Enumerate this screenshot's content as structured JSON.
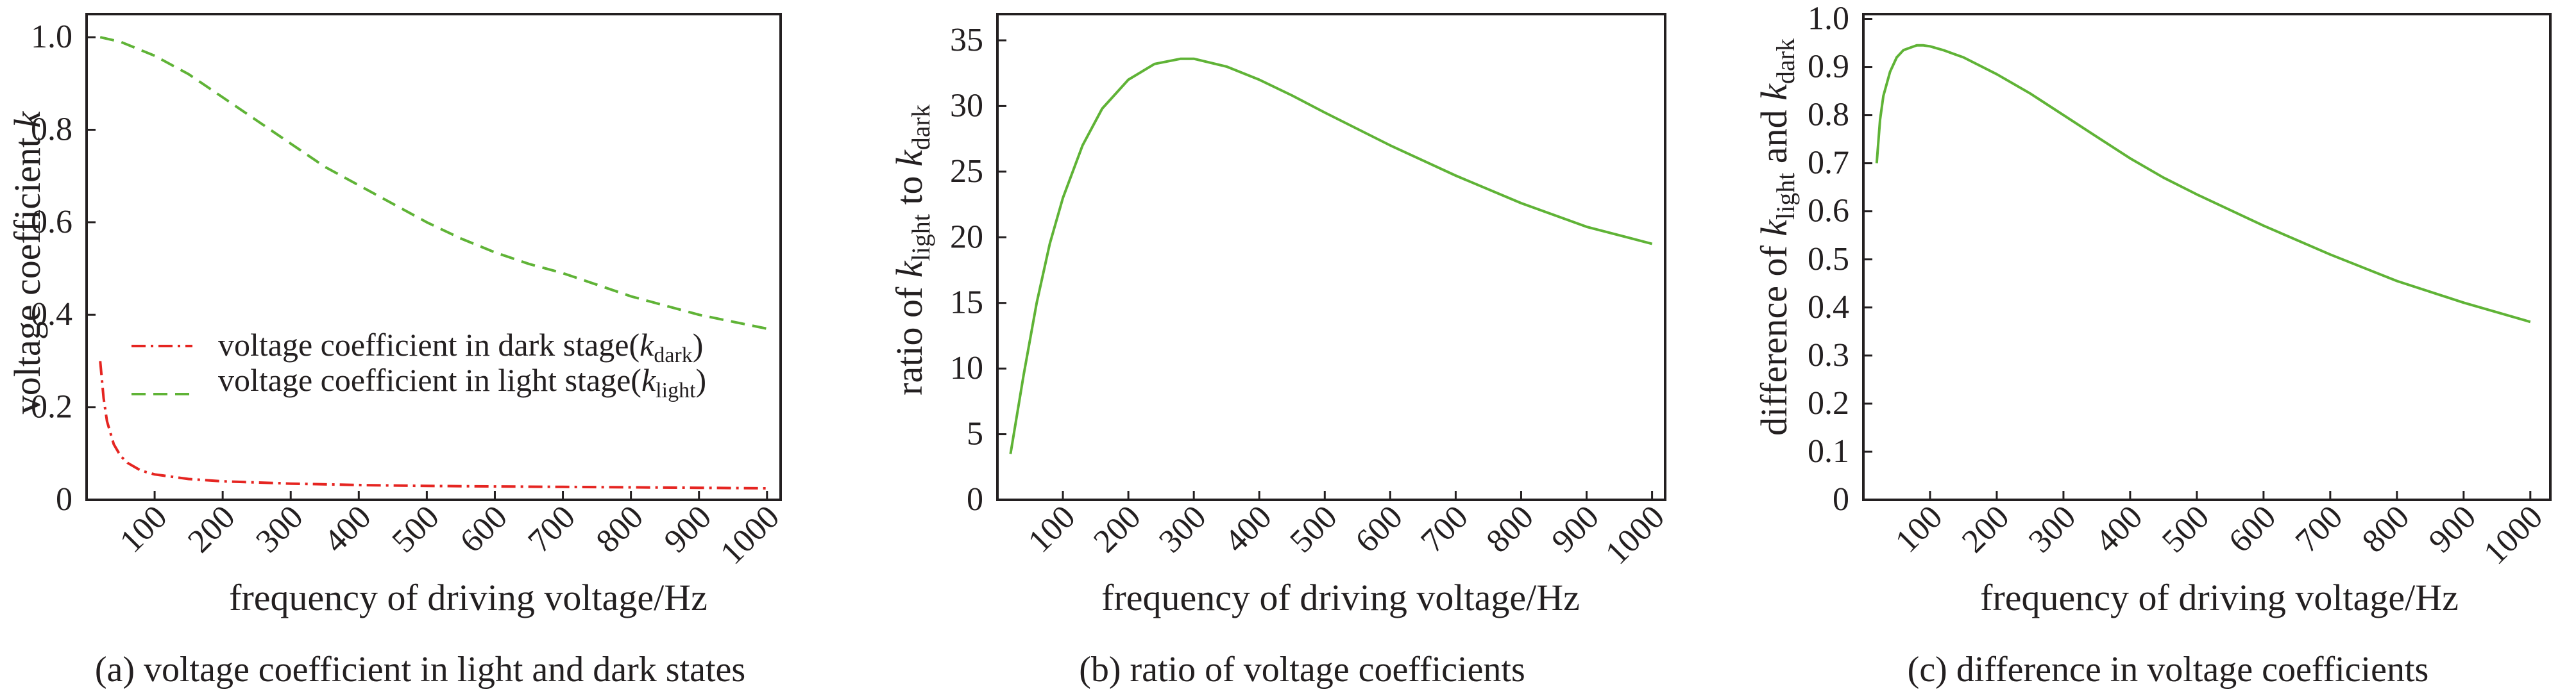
{
  "chart_data": [
    {
      "type": "line",
      "panel": "a",
      "caption": "(a) voltage coefficient in light and dark states",
      "xlabel": "frequency of driving voltage/Hz",
      "ylabel": "voltage coefficient k",
      "ylabel_main": "voltage coefficient ",
      "ylabel_var": "k",
      "xlim": [
        0,
        1020
      ],
      "ylim": [
        0,
        1.05
      ],
      "x_ticks": [
        100,
        200,
        300,
        400,
        500,
        600,
        700,
        800,
        900,
        1000
      ],
      "x_tick_labels": [
        "100",
        "200",
        "300",
        "400",
        "500",
        "600",
        "700",
        "800",
        "900",
        "1000"
      ],
      "y_ticks": [
        0,
        0.2,
        0.4,
        0.6,
        0.8,
        1.0
      ],
      "y_tick_labels": [
        "0",
        "0.2",
        "0.4",
        "0.6",
        "0.8",
        "1.0"
      ],
      "grid": false,
      "legend_position": "center-left",
      "series": [
        {
          "name": "voltage coefficient in dark stage(kdark)",
          "legend_text": "voltage coefficient in dark stage(",
          "legend_var": "k",
          "legend_sub": "dark",
          "color": "#e52521",
          "dash": "dashdot",
          "x": [
            20,
            25,
            30,
            40,
            50,
            60,
            80,
            100,
            150,
            200,
            300,
            400,
            500,
            600,
            700,
            800,
            900,
            1000
          ],
          "y": [
            0.3,
            0.22,
            0.17,
            0.12,
            0.095,
            0.08,
            0.063,
            0.055,
            0.045,
            0.04,
            0.035,
            0.032,
            0.03,
            0.029,
            0.028,
            0.027,
            0.026,
            0.025
          ]
        },
        {
          "name": "voltage coefficient in light stage(klight)",
          "legend_text": "voltage coefficient in light stage(",
          "legend_var": "k",
          "legend_sub": "light",
          "color": "#5fb336",
          "dash": "dashed",
          "x": [
            20,
            50,
            100,
            150,
            200,
            250,
            300,
            350,
            400,
            450,
            500,
            550,
            600,
            650,
            700,
            750,
            800,
            850,
            900,
            950,
            1000
          ],
          "y": [
            1.0,
            0.99,
            0.96,
            0.92,
            0.87,
            0.82,
            0.77,
            0.72,
            0.68,
            0.64,
            0.6,
            0.565,
            0.535,
            0.51,
            0.49,
            0.465,
            0.44,
            0.42,
            0.4,
            0.385,
            0.37
          ]
        }
      ]
    },
    {
      "type": "line",
      "panel": "b",
      "caption": "(b) ratio of voltage coefficients",
      "xlabel": "frequency of driving voltage/Hz",
      "ylabel": "ratio of klight to kdark",
      "ylabel_pre": "ratio of ",
      "ylabel_var1": "k",
      "ylabel_sub1": "light",
      "ylabel_mid": " to ",
      "ylabel_var2": "k",
      "ylabel_sub2": "dark",
      "xlim": [
        0,
        1020
      ],
      "ylim": [
        0,
        37
      ],
      "x_ticks": [
        100,
        200,
        300,
        400,
        500,
        600,
        700,
        800,
        900,
        1000
      ],
      "x_tick_labels": [
        "100",
        "200",
        "300",
        "400",
        "500",
        "600",
        "700",
        "800",
        "900",
        "1000"
      ],
      "y_ticks": [
        0,
        5,
        10,
        15,
        20,
        25,
        30,
        35
      ],
      "y_tick_labels": [
        "0",
        "5",
        "10",
        "15",
        "20",
        "25",
        "30",
        "35"
      ],
      "grid": false,
      "series": [
        {
          "color": "#5fb336",
          "x": [
            20,
            30,
            40,
            60,
            80,
            100,
            130,
            160,
            200,
            240,
            280,
            300,
            350,
            400,
            450,
            500,
            600,
            700,
            800,
            900,
            1000
          ],
          "y": [
            3.5,
            6.5,
            9.5,
            15.0,
            19.5,
            23.0,
            27.0,
            29.8,
            32.0,
            33.2,
            33.6,
            33.6,
            33.0,
            32.0,
            30.8,
            29.5,
            27.0,
            24.7,
            22.6,
            20.8,
            19.5
          ]
        }
      ]
    },
    {
      "type": "line",
      "panel": "c",
      "caption": "(c) difference in voltage coefficients",
      "xlabel": "frequency of driving voltage/Hz",
      "ylabel": "difference of klight and kdark",
      "ylabel_pre": "difference of ",
      "ylabel_var1": "k",
      "ylabel_sub1": "light",
      "ylabel_mid": " and ",
      "ylabel_var2": "k",
      "ylabel_sub2": "dark",
      "xlim": [
        0,
        1030
      ],
      "ylim": [
        0,
        1.01
      ],
      "x_ticks": [
        100,
        200,
        300,
        400,
        500,
        600,
        700,
        800,
        900,
        1000
      ],
      "x_tick_labels": [
        "100",
        "200",
        "300",
        "400",
        "500",
        "600",
        "700",
        "800",
        "900",
        "1000"
      ],
      "y_ticks": [
        0,
        0.1,
        0.2,
        0.3,
        0.4,
        0.5,
        0.6,
        0.7,
        0.8,
        0.9,
        1.0
      ],
      "y_tick_labels": [
        "0",
        "0.1",
        "0.2",
        "0.3",
        "0.4",
        "0.5",
        "0.6",
        "0.7",
        "0.8",
        "0.9",
        "1.0"
      ],
      "grid": false,
      "series": [
        {
          "color": "#5fb336",
          "x": [
            20,
            25,
            30,
            40,
            50,
            60,
            70,
            80,
            90,
            100,
            120,
            150,
            200,
            250,
            300,
            350,
            400,
            450,
            500,
            600,
            700,
            800,
            900,
            1000
          ],
          "y": [
            0.7,
            0.79,
            0.84,
            0.89,
            0.92,
            0.935,
            0.94,
            0.945,
            0.945,
            0.943,
            0.935,
            0.92,
            0.885,
            0.845,
            0.8,
            0.755,
            0.71,
            0.67,
            0.635,
            0.57,
            0.51,
            0.455,
            0.41,
            0.37
          ]
        }
      ]
    }
  ]
}
